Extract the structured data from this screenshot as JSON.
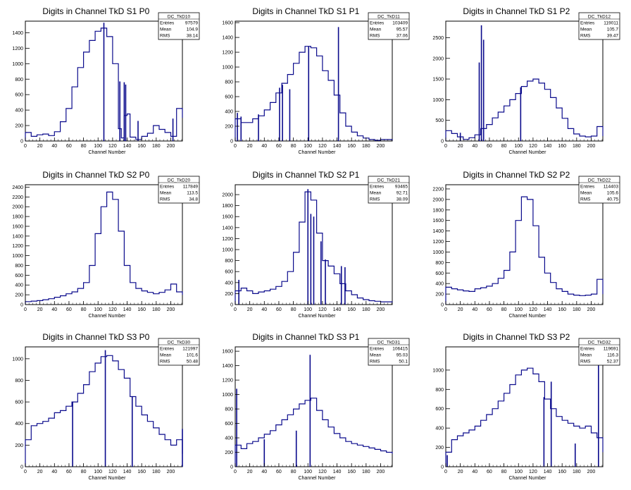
{
  "window": {
    "background": "#ffffff",
    "histogram_color": "#0a0a8c"
  },
  "chart_data": [
    {
      "type": "histogram",
      "title": "Digits in Channel TkD S1 P0",
      "xlabel": "Channel Number",
      "xlim": [
        0,
        216
      ],
      "ylim": [
        0,
        1550
      ],
      "xticks": [
        0,
        20,
        40,
        60,
        80,
        100,
        120,
        140,
        160,
        180,
        200
      ],
      "yticks": [
        0,
        200,
        400,
        600,
        800,
        1000,
        1200,
        1400
      ],
      "stats": {
        "name": "DC_TkD10",
        "entries": "97579",
        "mean": "104.9",
        "rms": "38.14"
      },
      "x": [
        0,
        8,
        16,
        24,
        32,
        40,
        48,
        56,
        64,
        72,
        80,
        88,
        96,
        104,
        112,
        120,
        128,
        132,
        136,
        140,
        144,
        152,
        160,
        168,
        176,
        184,
        192,
        200,
        208,
        216
      ],
      "values": [
        110,
        60,
        80,
        90,
        70,
        120,
        250,
        420,
        700,
        950,
        1150,
        1300,
        1420,
        1460,
        1350,
        1000,
        160,
        40,
        330,
        350,
        50,
        20,
        60,
        100,
        200,
        150,
        110,
        60,
        420,
        300
      ],
      "spikes": [
        {
          "x": 108,
          "y": 1530
        },
        {
          "x": 130,
          "y": 770
        },
        {
          "x": 136,
          "y": 760
        },
        {
          "x": 138,
          "y": 730
        },
        {
          "x": 155,
          "y": 260
        },
        {
          "x": 203,
          "y": 290
        }
      ]
    },
    {
      "type": "histogram",
      "title": "Digits in Channel TkD S1 P1",
      "xlabel": "Channel Number",
      "xlim": [
        0,
        216
      ],
      "ylim": [
        0,
        1620
      ],
      "xticks": [
        0,
        20,
        40,
        60,
        80,
        100,
        120,
        140,
        160,
        180,
        200
      ],
      "yticks": [
        0,
        200,
        400,
        600,
        800,
        1000,
        1200,
        1400,
        1600
      ],
      "stats": {
        "name": "DC_TkD11",
        "entries": "103409",
        "mean": "95.57",
        "rms": "37.06"
      },
      "x": [
        0,
        8,
        16,
        24,
        32,
        40,
        48,
        56,
        64,
        72,
        80,
        88,
        96,
        104,
        112,
        120,
        128,
        136,
        144,
        152,
        160,
        168,
        176,
        184,
        192,
        200,
        208,
        216
      ],
      "values": [
        300,
        250,
        250,
        300,
        340,
        420,
        520,
        650,
        780,
        900,
        1050,
        1200,
        1280,
        1260,
        1150,
        950,
        820,
        620,
        380,
        200,
        120,
        70,
        40,
        20,
        10,
        20,
        20,
        10
      ],
      "spikes": [
        {
          "x": 3,
          "y": 380
        },
        {
          "x": 8,
          "y": 330
        },
        {
          "x": 32,
          "y": 360
        },
        {
          "x": 61,
          "y": 720
        },
        {
          "x": 65,
          "y": 760
        },
        {
          "x": 75,
          "y": 700
        },
        {
          "x": 101,
          "y": 1280
        },
        {
          "x": 142,
          "y": 1540
        }
      ]
    },
    {
      "type": "histogram",
      "title": "Digits in Channel TkD S1 P2",
      "xlabel": "Channel Number",
      "xlim": [
        0,
        216
      ],
      "ylim": [
        0,
        2900
      ],
      "xticks": [
        0,
        20,
        40,
        60,
        80,
        100,
        120,
        140,
        160,
        180,
        200
      ],
      "yticks": [
        0,
        500,
        1000,
        1500,
        2000,
        2500
      ],
      "stats": {
        "name": "DC_TkD12",
        "entries": "119011",
        "mean": "105.7",
        "rms": "39.47"
      },
      "x": [
        0,
        8,
        16,
        24,
        32,
        40,
        48,
        56,
        64,
        72,
        80,
        88,
        96,
        104,
        112,
        120,
        128,
        136,
        144,
        152,
        160,
        168,
        176,
        184,
        192,
        200,
        208,
        216
      ],
      "values": [
        250,
        180,
        100,
        40,
        80,
        150,
        300,
        400,
        560,
        700,
        850,
        1000,
        1150,
        1320,
        1450,
        1500,
        1400,
        1250,
        1050,
        800,
        550,
        300,
        170,
        120,
        100,
        120,
        350,
        120
      ],
      "spikes": [
        {
          "x": 46,
          "y": 1900
        },
        {
          "x": 49,
          "y": 2800
        },
        {
          "x": 52,
          "y": 2450
        },
        {
          "x": 103,
          "y": 1300
        },
        {
          "x": 20,
          "y": 200
        }
      ]
    },
    {
      "type": "histogram",
      "title": "Digits in Channel TkD S2 P0",
      "xlabel": "Channel Number",
      "xlim": [
        0,
        216
      ],
      "ylim": [
        0,
        2450
      ],
      "xticks": [
        0,
        20,
        40,
        60,
        80,
        100,
        120,
        140,
        160,
        180,
        200
      ],
      "yticks": [
        0,
        200,
        400,
        600,
        800,
        1000,
        1200,
        1400,
        1600,
        1800,
        2000,
        2200,
        2400
      ],
      "stats": {
        "name": "DC_TkD20",
        "entries": "117849",
        "mean": "113.5",
        "rms": "34.8"
      },
      "x": [
        0,
        8,
        16,
        24,
        32,
        40,
        48,
        56,
        64,
        72,
        80,
        88,
        96,
        104,
        112,
        120,
        128,
        136,
        144,
        152,
        160,
        168,
        176,
        184,
        192,
        200,
        208,
        216
      ],
      "values": [
        60,
        70,
        80,
        100,
        120,
        150,
        180,
        220,
        260,
        330,
        450,
        800,
        1450,
        2000,
        2300,
        2150,
        1500,
        800,
        450,
        330,
        280,
        250,
        220,
        250,
        300,
        420,
        260,
        200
      ],
      "spikes": []
    },
    {
      "type": "histogram",
      "title": "Digits in Channel TkD S2 P1",
      "xlabel": "Channel Number",
      "xlim": [
        0,
        216
      ],
      "ylim": [
        0,
        2180
      ],
      "xticks": [
        0,
        20,
        40,
        60,
        80,
        100,
        120,
        140,
        160,
        180,
        200
      ],
      "yticks": [
        0,
        200,
        400,
        600,
        800,
        1000,
        1200,
        1400,
        1600,
        1800,
        2000
      ],
      "stats": {
        "name": "DC_TkD21",
        "entries": "93465",
        "mean": "92.71",
        "rms": "38.09"
      },
      "x": [
        0,
        8,
        16,
        24,
        32,
        40,
        48,
        56,
        64,
        72,
        80,
        88,
        96,
        104,
        112,
        120,
        128,
        136,
        144,
        152,
        160,
        168,
        176,
        184,
        192,
        200,
        208,
        216
      ],
      "values": [
        250,
        300,
        250,
        200,
        230,
        250,
        280,
        330,
        420,
        600,
        950,
        1500,
        2050,
        1900,
        1300,
        800,
        700,
        560,
        380,
        250,
        180,
        120,
        90,
        70,
        60,
        50,
        50,
        40
      ],
      "spikes": [
        {
          "x": 100,
          "y": 2100
        },
        {
          "x": 104,
          "y": 1650
        },
        {
          "x": 108,
          "y": 1600
        },
        {
          "x": 118,
          "y": 1150
        },
        {
          "x": 124,
          "y": 820
        },
        {
          "x": 146,
          "y": 700
        },
        {
          "x": 151,
          "y": 680
        },
        {
          "x": 5,
          "y": 450
        }
      ]
    },
    {
      "type": "histogram",
      "title": "Digits in Channel TkD S2 P2",
      "xlabel": "Channel Number",
      "xlim": [
        0,
        216
      ],
      "ylim": [
        0,
        2280
      ],
      "xticks": [
        0,
        20,
        40,
        60,
        80,
        100,
        120,
        140,
        160,
        180,
        200
      ],
      "yticks": [
        0,
        200,
        400,
        600,
        800,
        1000,
        1200,
        1400,
        1600,
        1800,
        2000,
        2200
      ],
      "stats": {
        "name": "DC_TkD22",
        "entries": "114403",
        "mean": "105.6",
        "rms": "40.75"
      },
      "x": [
        0,
        8,
        16,
        24,
        32,
        40,
        48,
        56,
        64,
        72,
        80,
        88,
        96,
        104,
        112,
        120,
        128,
        136,
        144,
        152,
        160,
        168,
        176,
        184,
        192,
        200,
        208,
        216
      ],
      "values": [
        330,
        300,
        280,
        260,
        250,
        300,
        320,
        350,
        400,
        500,
        650,
        1000,
        1600,
        2050,
        2000,
        1500,
        900,
        600,
        420,
        300,
        250,
        200,
        180,
        170,
        180,
        200,
        480,
        200
      ],
      "spikes": []
    },
    {
      "type": "histogram",
      "title": "Digits in Channel TkD S3 P0",
      "xlabel": "Channel Number",
      "xlim": [
        0,
        216
      ],
      "ylim": [
        0,
        1110
      ],
      "xticks": [
        0,
        20,
        40,
        60,
        80,
        100,
        120,
        140,
        160,
        180,
        200
      ],
      "yticks": [
        0,
        200,
        400,
        600,
        800,
        1000
      ],
      "stats": {
        "name": "DC_TkD30",
        "entries": "121997",
        "mean": "101.6",
        "rms": "50.48"
      },
      "x": [
        0,
        8,
        16,
        24,
        32,
        40,
        48,
        56,
        64,
        72,
        80,
        88,
        96,
        104,
        112,
        120,
        128,
        136,
        144,
        152,
        160,
        168,
        176,
        184,
        192,
        200,
        208,
        216
      ],
      "values": [
        250,
        380,
        400,
        420,
        450,
        500,
        520,
        560,
        600,
        680,
        760,
        880,
        960,
        1020,
        1030,
        980,
        900,
        820,
        650,
        560,
        480,
        420,
        360,
        300,
        250,
        200,
        250,
        120
      ],
      "spikes": [
        {
          "x": 65,
          "y": 600
        },
        {
          "x": 110,
          "y": 1080
        },
        {
          "x": 147,
          "y": 650
        },
        {
          "x": 216,
          "y": 350
        }
      ]
    },
    {
      "type": "histogram",
      "title": "Digits in Channel TkD S3 P1",
      "xlabel": "Channel Number",
      "xlim": [
        0,
        216
      ],
      "ylim": [
        0,
        1660
      ],
      "xticks": [
        0,
        20,
        40,
        60,
        80,
        100,
        120,
        140,
        160,
        180,
        200
      ],
      "yticks": [
        0,
        200,
        400,
        600,
        800,
        1000,
        1200,
        1400,
        1600
      ],
      "stats": {
        "name": "DC_TkD31",
        "entries": "106415",
        "mean": "95.03",
        "rms": "50.1"
      },
      "x": [
        0,
        8,
        16,
        24,
        32,
        40,
        48,
        56,
        64,
        72,
        80,
        88,
        96,
        104,
        112,
        120,
        128,
        136,
        144,
        152,
        160,
        168,
        176,
        184,
        192,
        200,
        208,
        216
      ],
      "values": [
        300,
        250,
        320,
        350,
        400,
        450,
        500,
        580,
        650,
        720,
        800,
        870,
        920,
        950,
        780,
        650,
        550,
        460,
        400,
        350,
        320,
        300,
        280,
        260,
        240,
        220,
        200,
        180
      ],
      "spikes": [
        {
          "x": 2,
          "y": 1080
        },
        {
          "x": 40,
          "y": 380
        },
        {
          "x": 84,
          "y": 500
        },
        {
          "x": 103,
          "y": 1550
        }
      ]
    },
    {
      "type": "histogram",
      "title": "Digits in Channel TkD S3 P2",
      "xlabel": "Channel Number",
      "xlim": [
        0,
        216
      ],
      "ylim": [
        0,
        1240
      ],
      "xticks": [
        0,
        20,
        40,
        60,
        80,
        100,
        120,
        140,
        160,
        180,
        200
      ],
      "yticks": [
        0,
        200,
        400,
        600,
        800,
        1000
      ],
      "stats": {
        "name": "DC_TkD32",
        "entries": "119691",
        "mean": "116.3",
        "rms": "52.37"
      },
      "x": [
        0,
        8,
        16,
        24,
        32,
        40,
        48,
        56,
        64,
        72,
        80,
        88,
        96,
        104,
        112,
        120,
        128,
        136,
        144,
        152,
        160,
        168,
        176,
        184,
        192,
        200,
        208,
        216
      ],
      "values": [
        150,
        280,
        320,
        350,
        380,
        420,
        480,
        540,
        600,
        680,
        760,
        850,
        950,
        1000,
        1020,
        960,
        880,
        700,
        600,
        520,
        480,
        450,
        420,
        400,
        420,
        350,
        300,
        150
      ],
      "spikes": [
        {
          "x": 2,
          "y": 120
        },
        {
          "x": 135,
          "y": 720
        },
        {
          "x": 145,
          "y": 880
        },
        {
          "x": 178,
          "y": 240
        },
        {
          "x": 210,
          "y": 1130
        }
      ]
    }
  ]
}
